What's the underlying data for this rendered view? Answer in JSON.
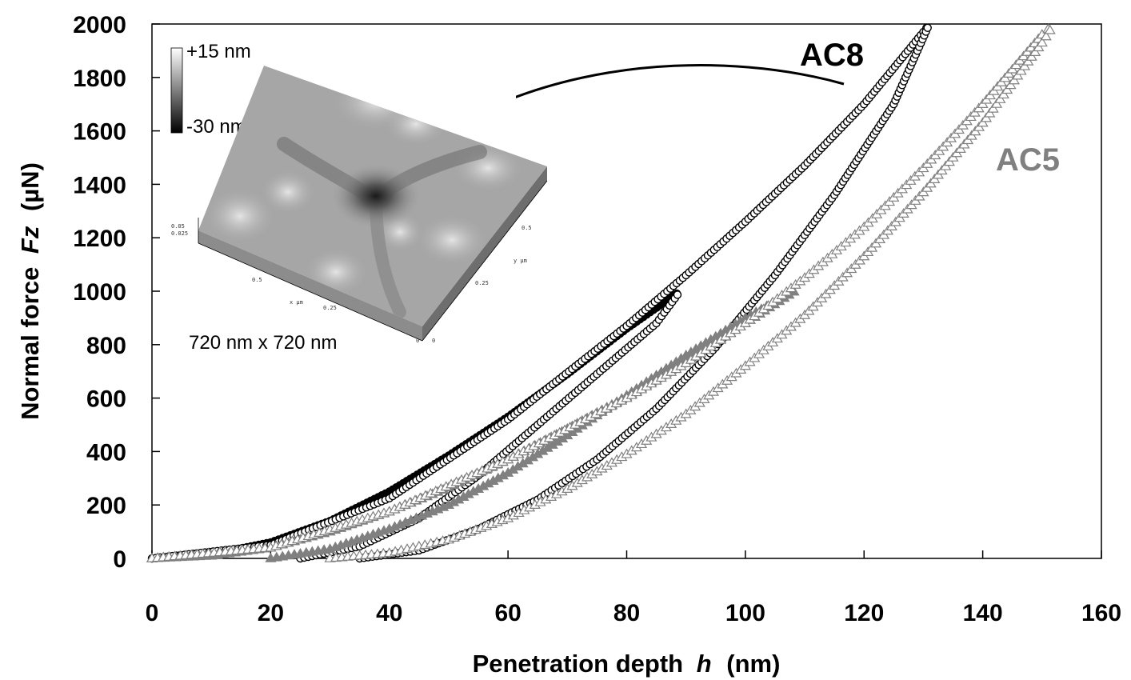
{
  "chart_data": {
    "type": "scatter",
    "title": "",
    "xlabel": "Penetration depth",
    "xlabel_symbol": "h",
    "xlabel_unit": "(nm)",
    "ylabel": "Normal force",
    "ylabel_symbol": "Fz",
    "ylabel_unit": "(µN)",
    "xlim": [
      0,
      160
    ],
    "ylim": [
      0,
      2000
    ],
    "x_ticks": [
      0,
      20,
      40,
      60,
      80,
      100,
      120,
      140,
      160
    ],
    "y_ticks": [
      0,
      200,
      400,
      600,
      800,
      1000,
      1200,
      1400,
      1600,
      1800,
      2000
    ],
    "grid": false,
    "series": [
      {
        "name": "AC8",
        "marker": "circle-filled",
        "color": "#000000",
        "role": "loading",
        "x": [
          0,
          10,
          20,
          30,
          40,
          50,
          60,
          70,
          80,
          89
        ],
        "y": [
          0,
          15,
          60,
          140,
          250,
          385,
          530,
          690,
          860,
          1000
        ]
      },
      {
        "name": "AC8",
        "marker": "circle-open",
        "color": "#000000",
        "role": "unloading",
        "x": [
          25,
          35,
          45,
          55,
          65,
          75,
          85,
          89
        ],
        "y": [
          0,
          45,
          150,
          310,
          500,
          690,
          880,
          1000
        ]
      },
      {
        "name": "AC8",
        "marker": "circle-open",
        "color": "#000000",
        "role": "loading",
        "x": [
          0,
          20,
          40,
          60,
          80,
          90,
          100,
          110,
          120,
          130,
          131
        ],
        "y": [
          0,
          50,
          225,
          520,
          870,
          1060,
          1260,
          1470,
          1700,
          1970,
          2000
        ]
      },
      {
        "name": "AC8",
        "marker": "circle-open",
        "color": "#000000",
        "role": "unloading",
        "x": [
          35,
          45,
          55,
          65,
          75,
          85,
          95,
          105,
          115,
          125,
          131
        ],
        "y": [
          0,
          30,
          110,
          220,
          370,
          560,
          790,
          1060,
          1360,
          1700,
          2000
        ]
      },
      {
        "name": "AC5",
        "marker": "triangle-filled",
        "color": "#808080",
        "role": "loading",
        "x": [
          0,
          10,
          20,
          30,
          40,
          50,
          60,
          70,
          80,
          90,
          100,
          109
        ],
        "y": [
          0,
          10,
          40,
          100,
          175,
          265,
          370,
          485,
          605,
          740,
          880,
          1010
        ]
      },
      {
        "name": "AC5",
        "marker": "triangle-filled",
        "color": "#808080",
        "role": "unloading",
        "x": [
          20,
          30,
          40,
          50,
          60,
          70,
          80,
          90,
          100,
          109
        ],
        "y": [
          0,
          35,
          110,
          200,
          320,
          460,
          610,
          760,
          900,
          1010
        ]
      },
      {
        "name": "AC5",
        "marker": "triangle-open",
        "color": "#808080",
        "role": "loading",
        "x": [
          0,
          20,
          40,
          60,
          80,
          90,
          100,
          110,
          120,
          130,
          140,
          150,
          152
        ],
        "y": [
          0,
          40,
          175,
          370,
          600,
          730,
          880,
          1050,
          1240,
          1460,
          1700,
          1960,
          2000
        ]
      },
      {
        "name": "AC5",
        "marker": "triangle-open",
        "color": "#808080",
        "role": "unloading",
        "x": [
          30,
          40,
          50,
          60,
          70,
          80,
          90,
          100,
          110,
          120,
          130,
          140,
          150,
          152
        ],
        "y": [
          0,
          20,
          70,
          150,
          260,
          390,
          540,
          720,
          910,
          1130,
          1370,
          1630,
          1930,
          2000
        ]
      }
    ],
    "annotations": [
      {
        "text": "AC8",
        "color": "#000000"
      },
      {
        "text": "AC5",
        "color": "#808080"
      }
    ],
    "inset": {
      "scale_max": "+15 nm",
      "scale_min": "-30 nm",
      "size_label": "720 nm x 720 nm",
      "axis_labels": [
        "0.05",
        "0.025",
        "0.5",
        "0.25",
        "0",
        "0.5",
        "0.25",
        "0",
        "x µm",
        "y µm"
      ]
    }
  }
}
